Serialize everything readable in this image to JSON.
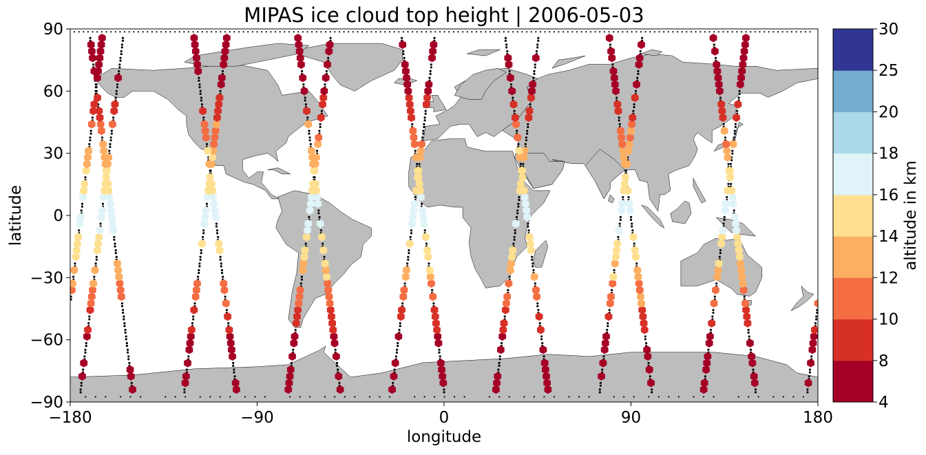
{
  "chart_data": {
    "type": "scatter",
    "title": "MIPAS ice cloud top height | 2006-05-03",
    "xlabel": "longitude",
    "ylabel": "latitude",
    "xlim": [
      -180,
      180
    ],
    "ylim": [
      -90,
      90
    ],
    "xticks": [
      -180,
      -90,
      0,
      90,
      180
    ],
    "yticks": [
      -90,
      -60,
      -30,
      0,
      30,
      60,
      90
    ],
    "xtick_labels": [
      "−180",
      "−90",
      "0",
      "90",
      "180"
    ],
    "ytick_labels": [
      "−90",
      "−60",
      "−30",
      "0",
      "30",
      "60",
      "90"
    ],
    "colorbar": {
      "label": "altitude in km",
      "boundaries": [
        4,
        8,
        10,
        12,
        14,
        16,
        18,
        20,
        25,
        30
      ],
      "tick_labels": [
        "4",
        "8",
        "10",
        "12",
        "14",
        "16",
        "18",
        "20",
        "25",
        "30"
      ],
      "colors": [
        "#a50026",
        "#d73027",
        "#f46d43",
        "#fdae61",
        "#fee090",
        "#e0f3f8",
        "#abd9e9",
        "#74add1",
        "#313695"
      ]
    },
    "land_color": "#bdbdbd",
    "orbit_track_color": "#000000",
    "orbit_tracks": [
      {
        "start_lon": -175,
        "descending": false
      },
      {
        "start_lon": -150,
        "descending": true
      },
      {
        "start_lon": -125,
        "descending": false
      },
      {
        "start_lon": -100,
        "descending": true
      },
      {
        "start_lon": -75,
        "descending": false
      },
      {
        "start_lon": -50,
        "descending": true
      },
      {
        "start_lon": -25,
        "descending": false
      },
      {
        "start_lon": 0,
        "descending": true
      },
      {
        "start_lon": 25,
        "descending": false
      },
      {
        "start_lon": 50,
        "descending": true
      },
      {
        "start_lon": 75,
        "descending": false
      },
      {
        "start_lon": 100,
        "descending": true
      },
      {
        "start_lon": 125,
        "descending": false
      },
      {
        "start_lon": 150,
        "descending": true
      },
      {
        "start_lon": 175,
        "descending": false
      }
    ]
  }
}
